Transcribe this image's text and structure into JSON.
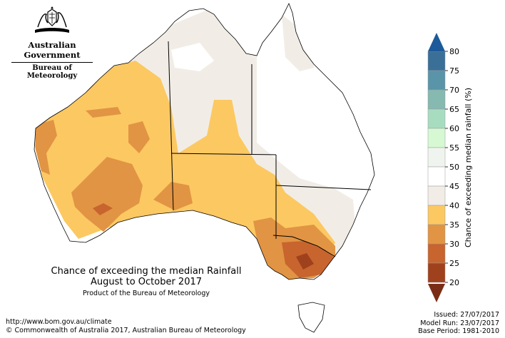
{
  "logo": {
    "crest_icon": "coat-of-arms-icon",
    "government": "Australian Government",
    "agency": "Bureau of Meteorology"
  },
  "map_title": {
    "line1": "Chance of exceeding the median Rainfall",
    "line2": "August to October 2017",
    "line3": "Product of the Bureau of Meteorology"
  },
  "footer": {
    "url": "http://www.bom.gov.au/climate",
    "copyright": "© Commonwealth of Australia 2017, Australian Bureau of Meteorology",
    "issued": "Issued: 27/07/2017",
    "model_run": "Model Run: 23/07/2017",
    "base_period": "Base Period: 1981-2010"
  },
  "legend": {
    "title": "Chance of exceeding median rainfall (%)",
    "ticks": [
      "80",
      "75",
      "70",
      "65",
      "60",
      "55",
      "50",
      "45",
      "40",
      "35",
      "30",
      "25",
      "20"
    ],
    "bins": [
      {
        "range": "75-80",
        "color": "#3a6f98"
      },
      {
        "range": "70-75",
        "color": "#5a94a8"
      },
      {
        "range": "65-70",
        "color": "#86b9b0"
      },
      {
        "range": "60-65",
        "color": "#a8dcc0"
      },
      {
        "range": "55-60",
        "color": "#d6f9d4"
      },
      {
        "range": "50-55",
        "color": "#eff5ee"
      },
      {
        "range": "45-50",
        "color": "#ffffff"
      },
      {
        "range": "40-45",
        "color": "#f1ede6"
      },
      {
        "range": "35-40",
        "color": "#fcc862"
      },
      {
        "range": "30-35",
        "color": "#e19443"
      },
      {
        "range": "25-30",
        "color": "#c8642e"
      },
      {
        "range": "20-25",
        "color": "#a0411d"
      }
    ],
    "top_arrow_color": "#1d5a9a",
    "bottom_arrow_color": "#7a2d14"
  }
}
